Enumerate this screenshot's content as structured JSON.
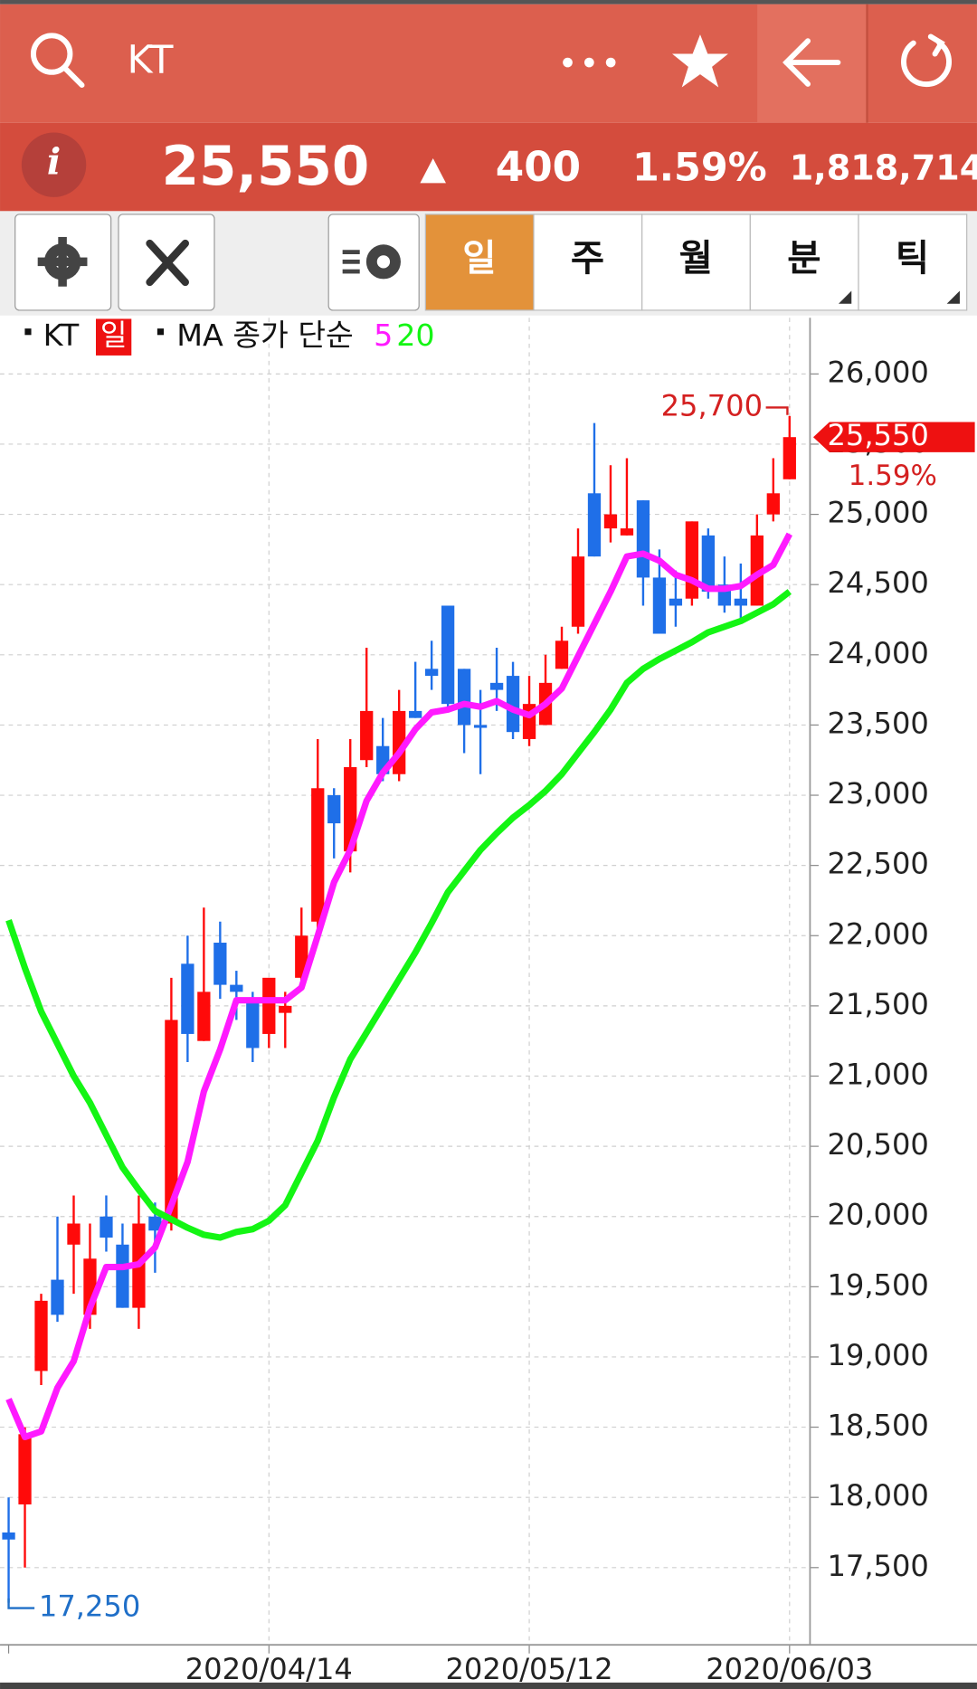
{
  "header": {
    "symbol": "KT"
  },
  "quote": {
    "price": "25,550",
    "change": "400",
    "change_pct": "1.59%",
    "volume": "1,818,714"
  },
  "tabs": [
    "일",
    "주",
    "월",
    "분",
    "틱"
  ],
  "chart_data": {
    "type": "candlestick",
    "legend": {
      "symbol": "KT",
      "period": "일",
      "ma_label": "MA 종가 단순"
    },
    "categories": [
      null,
      null,
      null,
      null,
      null,
      null,
      null,
      null,
      null,
      null,
      null,
      null,
      null,
      null,
      null,
      null,
      "2020/04/14",
      null,
      null,
      null,
      null,
      null,
      null,
      null,
      null,
      null,
      null,
      null,
      null,
      null,
      null,
      null,
      "2020/05/12",
      null,
      null,
      null,
      null,
      null,
      null,
      null,
      null,
      null,
      null,
      null,
      null,
      null,
      null,
      null,
      "2020/06/03"
    ],
    "open": [
      17750,
      17950,
      18900,
      19550,
      19800,
      19300,
      20000,
      19800,
      19350,
      20000,
      19950,
      21800,
      21250,
      21950,
      21650,
      21550,
      21300,
      21450,
      21700,
      22100,
      23000,
      22600,
      23250,
      23350,
      23150,
      23600,
      23900,
      24350,
      23900,
      23500,
      23800,
      23850,
      23400,
      23500,
      23900,
      24200,
      25150,
      24900,
      24850,
      25100,
      24550,
      24400,
      24400,
      24850,
      24500,
      24400,
      24350,
      25000,
      25250
    ],
    "high": [
      18000,
      18500,
      19450,
      20000,
      20150,
      19950,
      20150,
      19950,
      20150,
      20100,
      21700,
      22000,
      22200,
      22100,
      21750,
      21600,
      21700,
      21600,
      22200,
      23400,
      23050,
      23400,
      24050,
      23550,
      23750,
      23950,
      24100,
      24350,
      23900,
      23750,
      24050,
      23950,
      23850,
      24000,
      24200,
      24900,
      25650,
      25350,
      25400,
      25100,
      24750,
      24600,
      24950,
      24900,
      24700,
      24650,
      25000,
      25400,
      25700
    ],
    "low": [
      17250,
      17500,
      18800,
      19250,
      19450,
      19200,
      19750,
      19350,
      19200,
      19600,
      19900,
      21100,
      21250,
      21550,
      21400,
      21100,
      21200,
      21200,
      21650,
      22050,
      22550,
      22450,
      23200,
      23100,
      23100,
      23550,
      23750,
      23600,
      23300,
      23150,
      23600,
      23400,
      23350,
      23500,
      23900,
      24150,
      24700,
      24800,
      24850,
      24350,
      24150,
      24200,
      24350,
      24400,
      24300,
      24250,
      24350,
      24950,
      25250
    ],
    "close": [
      17700,
      18450,
      19400,
      19300,
      19950,
      19700,
      19850,
      19350,
      19950,
      19900,
      21400,
      21300,
      21600,
      21650,
      21600,
      21200,
      21700,
      21500,
      22000,
      23050,
      22800,
      23200,
      23600,
      23150,
      23600,
      23550,
      23850,
      23650,
      23500,
      23480,
      23750,
      23450,
      23650,
      23800,
      24100,
      24700,
      24700,
      25000,
      24900,
      24550,
      24150,
      24350,
      24950,
      24450,
      24350,
      24350,
      24850,
      25150,
      25550
    ],
    "up_color": "#ff0a0a",
    "down_color": "#1f6fe8",
    "series": [
      {
        "name": "5",
        "color": "#ff1aff",
        "values": [
          18700,
          18430,
          18470,
          18780,
          18970,
          19350,
          19640,
          19640,
          19660,
          19780,
          20080,
          20390,
          20890,
          21190,
          21540,
          21540,
          21540,
          21540,
          21630,
          22000,
          22380,
          22610,
          22960,
          23160,
          23300,
          23470,
          23590,
          23610,
          23650,
          23630,
          23670,
          23610,
          23570,
          23650,
          23760,
          23990,
          24220,
          24450,
          24700,
          24720,
          24670,
          24570,
          24530,
          24470,
          24470,
          24490,
          24570,
          24640,
          24860
        ]
      },
      {
        "name": "20",
        "color": "#14f514",
        "values": [
          22110,
          21770,
          21460,
          21230,
          21000,
          20810,
          20580,
          20350,
          20190,
          20040,
          19980,
          19920,
          19870,
          19850,
          19890,
          19910,
          19970,
          20080,
          20310,
          20540,
          20850,
          21120,
          21310,
          21500,
          21690,
          21880,
          22090,
          22310,
          22460,
          22610,
          22730,
          22840,
          22930,
          23030,
          23150,
          23300,
          23450,
          23610,
          23800,
          23900,
          23970,
          24030,
          24090,
          24160,
          24200,
          24240,
          24300,
          24360,
          24450
        ]
      }
    ],
    "ylim": [
      16950,
      26400
    ],
    "yticks": [
      {
        "value": 17500,
        "label": "17,500"
      },
      {
        "value": 18000,
        "label": "18,000"
      },
      {
        "value": 18500,
        "label": "18,500"
      },
      {
        "value": 19000,
        "label": "19,000"
      },
      {
        "value": 19500,
        "label": "19,500"
      },
      {
        "value": 20000,
        "label": "20,000"
      },
      {
        "value": 20500,
        "label": "20,500"
      },
      {
        "value": 21000,
        "label": "21,000"
      },
      {
        "value": 21500,
        "label": "21,500"
      },
      {
        "value": 22000,
        "label": "22,000"
      },
      {
        "value": 22500,
        "label": "22,500"
      },
      {
        "value": 23000,
        "label": "23,000"
      },
      {
        "value": 23500,
        "label": "23,500"
      },
      {
        "value": 24000,
        "label": "24,000"
      },
      {
        "value": 24500,
        "label": "24,500"
      },
      {
        "value": 25000,
        "label": "25,000"
      },
      {
        "value": 25500,
        "label": "25,500"
      },
      {
        "value": 26000,
        "label": "26,000"
      }
    ],
    "grid": true,
    "annotations": {
      "high": {
        "value": 25700,
        "label": "25,700"
      },
      "low": {
        "value": 17250,
        "label": "17,250"
      },
      "last": {
        "value": 25550,
        "label": "25,550"
      },
      "last_change": "1.59%"
    }
  }
}
